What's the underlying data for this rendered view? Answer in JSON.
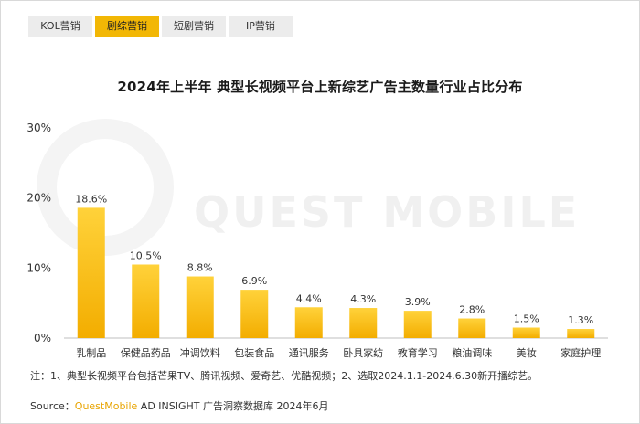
{
  "tabs": [
    {
      "label": "KOL营销",
      "active": false
    },
    {
      "label": "剧综营销",
      "active": true
    },
    {
      "label": "短剧营销",
      "active": false
    },
    {
      "label": "IP营销",
      "active": false
    }
  ],
  "watermark": "QUEST MOBILE",
  "note": "注：1、典型长视频平台包括芒果TV、腾讯视频、爱奇艺、优酷视频；2、选取2024.1.1-2024.6.30新开播综艺。",
  "source": {
    "prefix": "Source：",
    "brand": "QuestMobile",
    "suffix": " AD INSIGHT 广告洞察数据库 2024年6月"
  },
  "colors": {
    "bar_top": "#ffd23a",
    "bar_bottom": "#f3ad00",
    "accent": "#f2b705"
  },
  "chart_data": {
    "type": "bar",
    "title": "2024年上半年 典型长视频平台上新综艺广告主数量行业占比分布",
    "categories": [
      "乳制品",
      "保健品药品",
      "冲调饮料",
      "包装食品",
      "通讯服务",
      "卧具家纺",
      "教育学习",
      "粮油调味",
      "美妆",
      "家庭护理"
    ],
    "values": [
      18.6,
      10.5,
      8.8,
      6.9,
      4.4,
      4.3,
      3.9,
      2.8,
      1.5,
      1.3
    ],
    "value_labels": [
      "18.6%",
      "10.5%",
      "8.8%",
      "6.9%",
      "4.4%",
      "4.3%",
      "3.9%",
      "2.8%",
      "1.5%",
      "1.3%"
    ],
    "yticks": [
      0,
      10,
      20,
      30
    ],
    "ytick_labels": [
      "0%",
      "10%",
      "20%",
      "30%"
    ],
    "ylim": [
      0,
      30
    ],
    "xlabel": "",
    "ylabel": "",
    "grid": false,
    "legend": "none"
  }
}
